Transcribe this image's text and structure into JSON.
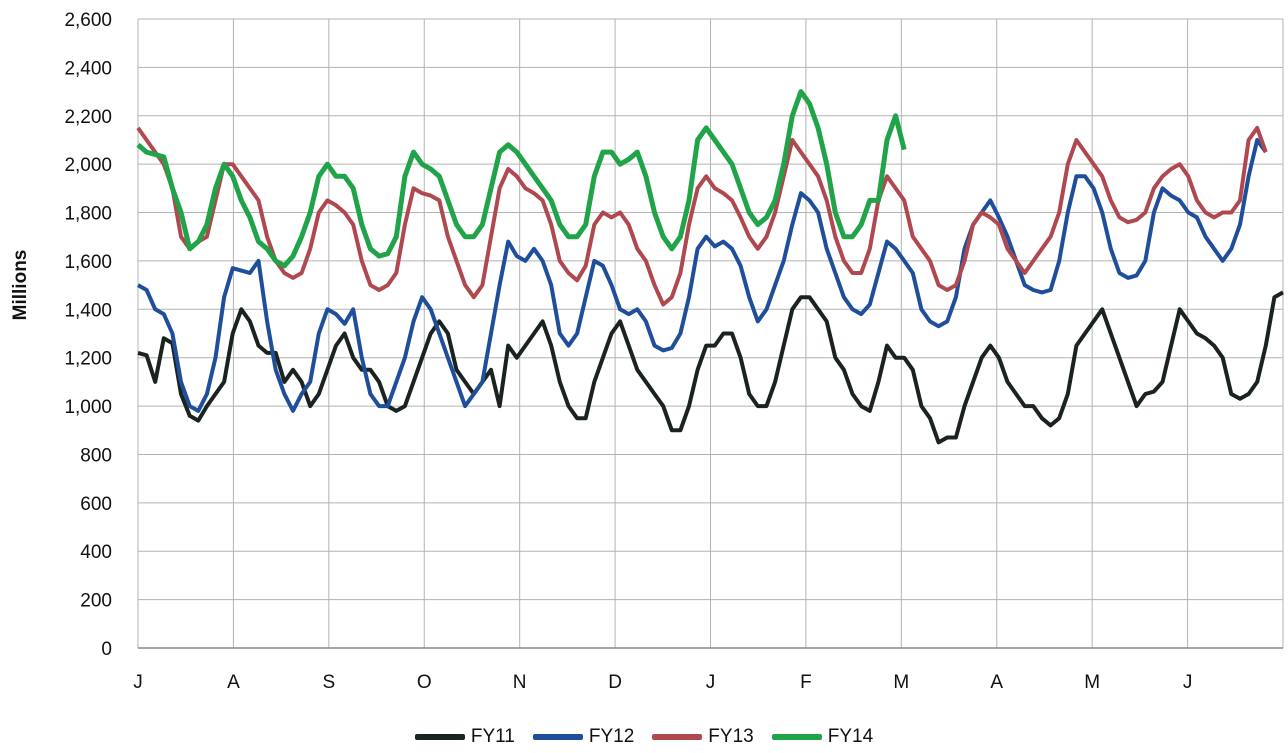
{
  "chart_data": {
    "type": "line",
    "title": "",
    "xlabel": "",
    "ylabel": "Millions",
    "ylim": [
      0,
      2600
    ],
    "y_ticks": [
      "0",
      "200",
      "400",
      "600",
      "800",
      "1,000",
      "1,200",
      "1,400",
      "1,600",
      "1,800",
      "2,000",
      "2,200",
      "2,400",
      "2,600"
    ],
    "x_ticks": [
      "J",
      "A",
      "S",
      "O",
      "N",
      "D",
      "J",
      "F",
      "M",
      "A",
      "M",
      "J"
    ],
    "grid": true,
    "legend_position": "bottom",
    "series": [
      {
        "name": "FY11",
        "color": "#1b2320",
        "values": [
          1220,
          1210,
          1100,
          1280,
          1260,
          1050,
          960,
          940,
          1000,
          1050,
          1100,
          1300,
          1400,
          1350,
          1250,
          1220,
          1220,
          1100,
          1150,
          1100,
          1000,
          1050,
          1150,
          1250,
          1300,
          1200,
          1150,
          1150,
          1100,
          1000,
          980,
          1000,
          1100,
          1200,
          1300,
          1350,
          1300,
          1150,
          1100,
          1050,
          1100,
          1150,
          1000,
          1250,
          1200,
          1250,
          1300,
          1350,
          1250,
          1100,
          1000,
          950,
          950,
          1100,
          1200,
          1300,
          1350,
          1250,
          1150,
          1100,
          1050,
          1000,
          900,
          900,
          1000,
          1150,
          1250,
          1250,
          1300,
          1300,
          1200,
          1050,
          1000,
          1000,
          1100,
          1250,
          1400,
          1450,
          1450,
          1400,
          1350,
          1200,
          1150,
          1050,
          1000,
          980,
          1100,
          1250,
          1200,
          1200,
          1150,
          1000,
          950,
          850,
          870,
          870,
          1000,
          1100,
          1200,
          1250,
          1200,
          1100,
          1050,
          1000,
          1000,
          950,
          920,
          950,
          1050,
          1250,
          1300,
          1350,
          1400,
          1300,
          1200,
          1100,
          1000,
          1050,
          1060,
          1100,
          1250,
          1400,
          1350,
          1300,
          1280,
          1250,
          1200,
          1050,
          1030,
          1050,
          1100,
          1250,
          1450,
          1470
        ]
      },
      {
        "name": "FY12",
        "color": "#1f4e9b",
        "values": [
          1500,
          1480,
          1400,
          1380,
          1300,
          1100,
          1000,
          980,
          1050,
          1200,
          1450,
          1570,
          1560,
          1550,
          1600,
          1350,
          1150,
          1050,
          980,
          1050,
          1100,
          1300,
          1400,
          1380,
          1340,
          1400,
          1200,
          1050,
          1000,
          1000,
          1100,
          1200,
          1350,
          1450,
          1400,
          1300,
          1200,
          1100,
          1000,
          1050,
          1100,
          1300,
          1500,
          1680,
          1620,
          1600,
          1650,
          1600,
          1500,
          1300,
          1250,
          1300,
          1450,
          1600,
          1580,
          1500,
          1400,
          1380,
          1400,
          1350,
          1250,
          1230,
          1240,
          1300,
          1450,
          1650,
          1700,
          1660,
          1680,
          1650,
          1580,
          1450,
          1350,
          1400,
          1500,
          1600,
          1750,
          1880,
          1850,
          1800,
          1650,
          1550,
          1450,
          1400,
          1380,
          1420,
          1550,
          1680,
          1650,
          1600,
          1550,
          1400,
          1350,
          1330,
          1350,
          1450,
          1650,
          1750,
          1800,
          1850,
          1780,
          1700,
          1600,
          1500,
          1480,
          1470,
          1480,
          1600,
          1800,
          1950,
          1950,
          1900,
          1800,
          1650,
          1550,
          1530,
          1540,
          1600,
          1800,
          1900,
          1870,
          1850,
          1800,
          1780,
          1700,
          1650,
          1600,
          1650,
          1750,
          1950,
          2100,
          2050
        ]
      },
      {
        "name": "FY13",
        "color": "#b0484f",
        "values": [
          2150,
          2100,
          2050,
          2000,
          1900,
          1700,
          1650,
          1680,
          1700,
          1850,
          2000,
          2000,
          1950,
          1900,
          1850,
          1700,
          1600,
          1550,
          1530,
          1550,
          1650,
          1800,
          1850,
          1830,
          1800,
          1750,
          1600,
          1500,
          1480,
          1500,
          1550,
          1750,
          1900,
          1880,
          1870,
          1850,
          1700,
          1600,
          1500,
          1450,
          1500,
          1700,
          1900,
          1980,
          1950,
          1900,
          1880,
          1850,
          1750,
          1600,
          1550,
          1520,
          1580,
          1750,
          1800,
          1780,
          1800,
          1750,
          1650,
          1600,
          1500,
          1420,
          1450,
          1550,
          1750,
          1900,
          1950,
          1900,
          1880,
          1850,
          1780,
          1700,
          1650,
          1700,
          1800,
          1950,
          2100,
          2050,
          2000,
          1950,
          1850,
          1700,
          1600,
          1550,
          1550,
          1650,
          1850,
          1950,
          1900,
          1850,
          1700,
          1650,
          1600,
          1500,
          1480,
          1500,
          1600,
          1750,
          1800,
          1780,
          1750,
          1650,
          1600,
          1550,
          1600,
          1650,
          1700,
          1800,
          2000,
          2100,
          2050,
          2000,
          1950,
          1850,
          1780,
          1760,
          1770,
          1800,
          1900,
          1950,
          1980,
          2000,
          1950,
          1850,
          1800,
          1780,
          1800,
          1800,
          1850,
          2100,
          2150,
          2050
        ]
      },
      {
        "name": "FY14",
        "color": "#21a34a",
        "values": [
          2080,
          2050,
          2040,
          2030,
          1900,
          1800,
          1650,
          1680,
          1750,
          1900,
          2000,
          1950,
          1850,
          1780,
          1680,
          1650,
          1600,
          1580,
          1620,
          1700,
          1800,
          1950,
          2000,
          1950,
          1950,
          1900,
          1750,
          1650,
          1620,
          1630,
          1700,
          1950,
          2050,
          2000,
          1980,
          1950,
          1850,
          1750,
          1700,
          1700,
          1750,
          1900,
          2050,
          2080,
          2050,
          2000,
          1950,
          1900,
          1850,
          1750,
          1700,
          1700,
          1750,
          1950,
          2050,
          2050,
          2000,
          2020,
          2050,
          1950,
          1800,
          1700,
          1650,
          1700,
          1850,
          2100,
          2150,
          2100,
          2050,
          2000,
          1900,
          1800,
          1750,
          1780,
          1850,
          2000,
          2200,
          2300,
          2250,
          2150,
          2000,
          1800,
          1700,
          1700,
          1750,
          1850,
          1850,
          2100,
          2200,
          2060
        ]
      }
    ]
  }
}
